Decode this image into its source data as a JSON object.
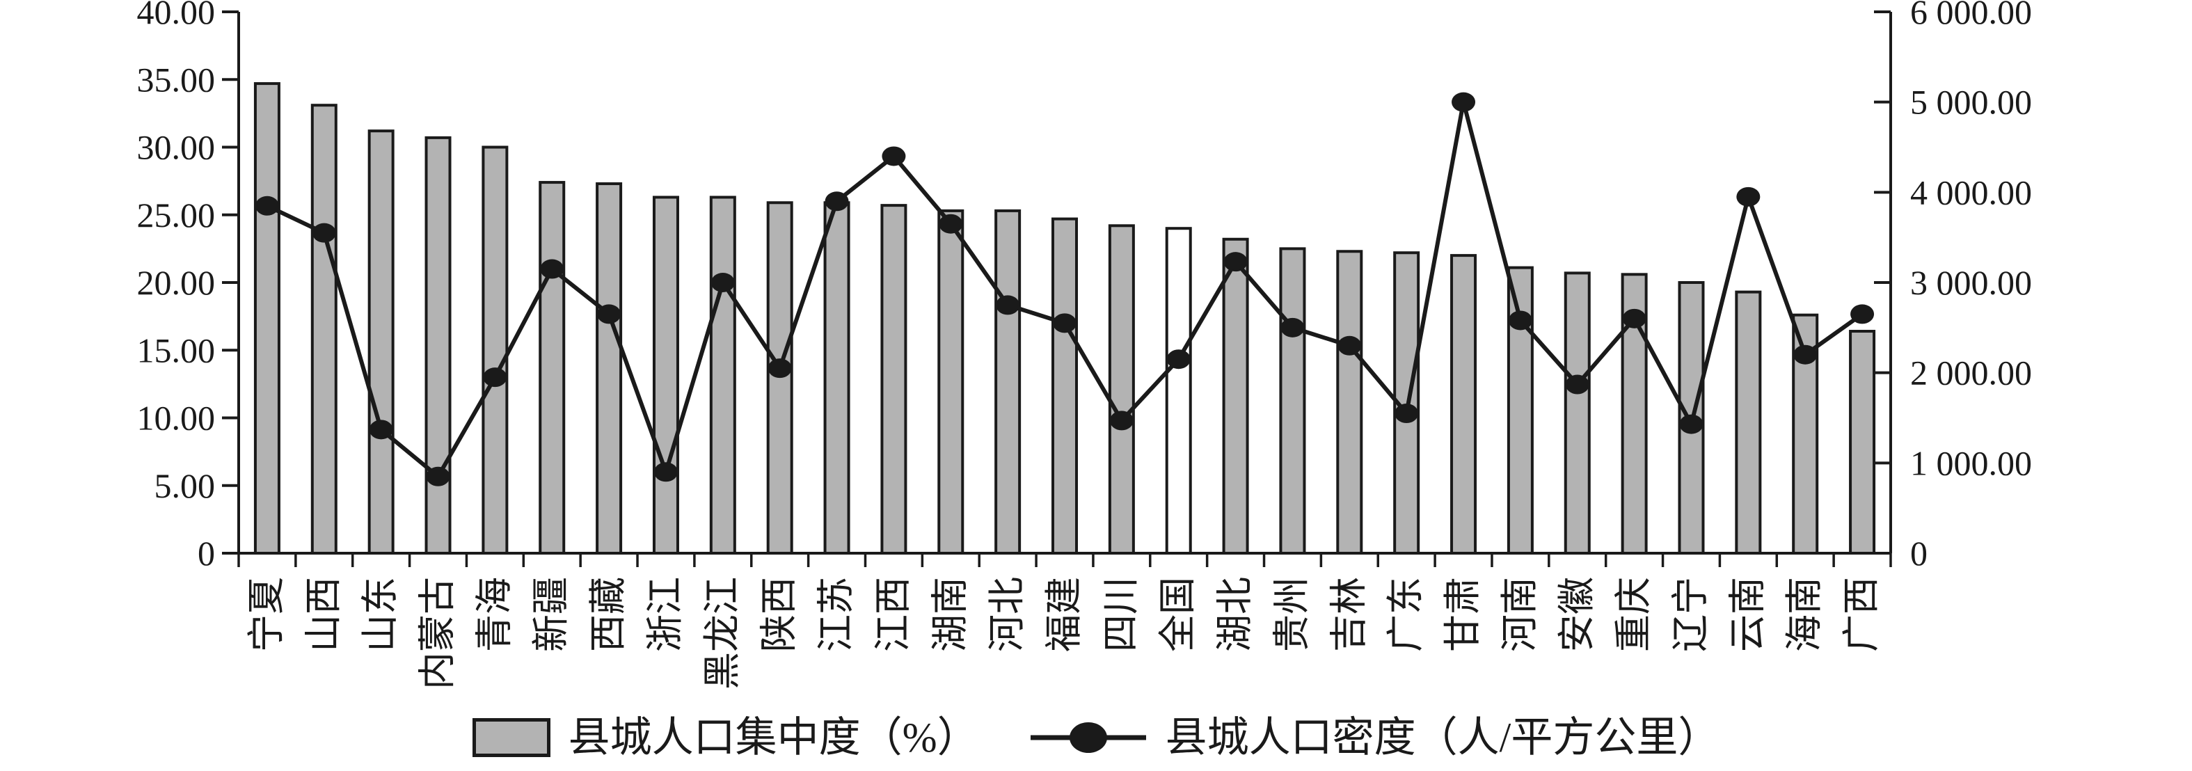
{
  "chart_data": {
    "type": "bar+line combo",
    "title": "",
    "xlabel": "",
    "ylabel_left": "县城人口集中度（%）",
    "ylabel_right": "县城人口密度（人/平方公里）",
    "grid": false,
    "legend_position": "bottom",
    "categories": [
      "宁夏",
      "山西",
      "山东",
      "内蒙古",
      "青海",
      "新疆",
      "西藏",
      "浙江",
      "黑龙江",
      "陕西",
      "江苏",
      "江西",
      "湖南",
      "河北",
      "福建",
      "四川",
      "全国",
      "湖北",
      "贵州",
      "吉林",
      "广东",
      "甘肃",
      "河南",
      "安徽",
      "重庆",
      "辽宁",
      "云南",
      "海南",
      "广西"
    ],
    "series": [
      {
        "name": "县城人口集中度（%）",
        "type": "bar",
        "axis": "left",
        "values": [
          34.7,
          33.1,
          31.2,
          30.7,
          30.0,
          27.4,
          27.3,
          26.3,
          26.3,
          25.9,
          25.9,
          25.7,
          25.3,
          25.3,
          24.7,
          24.2,
          24.0,
          23.2,
          22.5,
          22.3,
          22.2,
          22.0,
          21.1,
          20.7,
          20.6,
          20.0,
          19.3,
          17.6,
          16.4
        ]
      },
      {
        "name": "县城人口密度（人/平方公里）",
        "type": "line",
        "axis": "right",
        "values": [
          3850,
          3550,
          1370,
          850,
          1950,
          3150,
          2650,
          900,
          3000,
          2050,
          3900,
          4400,
          3650,
          2750,
          2550,
          1470,
          2150,
          3230,
          2500,
          2300,
          1550,
          5000,
          2580,
          1870,
          2600,
          1430,
          3950,
          2200,
          2650
        ]
      }
    ],
    "highlight_category": "全国",
    "left_axis": {
      "min": 0,
      "max": 40,
      "tick_step": 5,
      "tick_labels": [
        "40.00",
        "35.00",
        "30.00",
        "25.00",
        "20.00",
        "15.00",
        "10.00",
        "5.00",
        "0"
      ]
    },
    "right_axis": {
      "min": 0,
      "max": 6000,
      "tick_step": 1000,
      "tick_labels": [
        "6 000.00",
        "5 000.00",
        "4 000.00",
        "3 000.00",
        "2 000.00",
        "1 000.00",
        "0"
      ]
    }
  },
  "colors": {
    "background": "#ffffff",
    "bar_fill": "#b3b3b3",
    "bar_highlight_fill": "#ffffff",
    "stroke": "#1a1a1a"
  }
}
